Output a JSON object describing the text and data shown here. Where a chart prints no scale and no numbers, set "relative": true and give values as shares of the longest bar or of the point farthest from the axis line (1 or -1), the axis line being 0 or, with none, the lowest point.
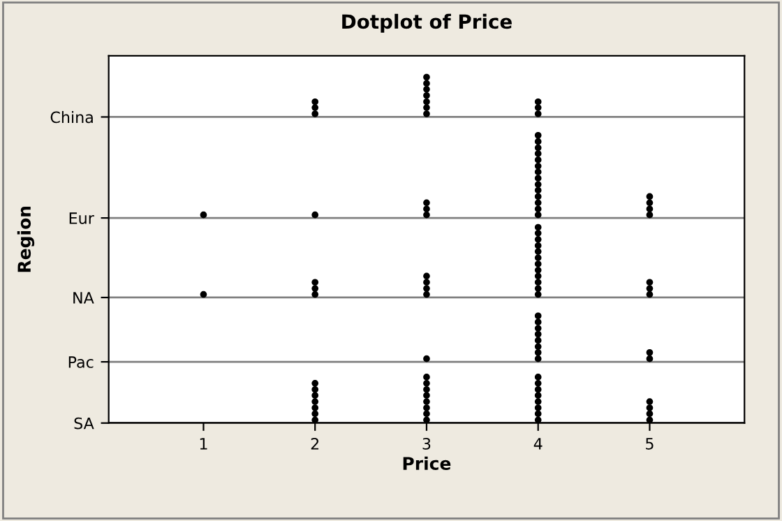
{
  "chart_data": {
    "type": "scatter",
    "title": "Dotplot of Price",
    "xlabel": "Price",
    "ylabel": "Region",
    "xlim": [
      0.15,
      5.85
    ],
    "xticks": [
      1,
      2,
      3,
      4,
      5
    ],
    "relative": true,
    "ref_lines": [
      {
        "axis": "y",
        "value": 0,
        "label": "SA",
        "color": "#000000"
      },
      {
        "axis": "y",
        "value": 0.177,
        "label": "Pac",
        "color": "#808080"
      },
      {
        "axis": "y",
        "value": 0.363,
        "label": "NA",
        "color": "#808080"
      },
      {
        "axis": "y",
        "value": 0.593,
        "label": "Eur",
        "color": "#808080"
      },
      {
        "axis": "y",
        "value": 0.885,
        "label": "China",
        "color": "#808080"
      }
    ],
    "marker": "circle",
    "series": [
      {
        "color": "#000000",
        "x": [
          2,
          2,
          2,
          3,
          3,
          3,
          3,
          3,
          3,
          3,
          4,
          4,
          4
        ],
        "values": [
          0.894,
          0.912,
          0.929,
          0.894,
          0.912,
          0.929,
          0.947,
          0.965,
          0.982,
          1,
          0.894,
          0.912,
          0.929
        ]
      },
      {
        "color": "#000000",
        "x": [
          1,
          2,
          3,
          3,
          3,
          4,
          4,
          4,
          4,
          4,
          4,
          4,
          4,
          4,
          4,
          4,
          4,
          4,
          4,
          5,
          5,
          5,
          5
        ],
        "values": [
          0.602,
          0.602,
          0.602,
          0.619,
          0.637,
          0.602,
          0.619,
          0.637,
          0.655,
          0.673,
          0.69,
          0.708,
          0.726,
          0.743,
          0.761,
          0.779,
          0.796,
          0.814,
          0.832,
          0.602,
          0.619,
          0.637,
          0.655
        ]
      },
      {
        "color": "#000000",
        "x": [
          1,
          2,
          2,
          2,
          3,
          3,
          3,
          3,
          4,
          4,
          4,
          4,
          4,
          4,
          4,
          4,
          4,
          4,
          4,
          4,
          5,
          5,
          5
        ],
        "values": [
          0.372,
          0.372,
          0.389,
          0.407,
          0.372,
          0.389,
          0.407,
          0.425,
          0.372,
          0.389,
          0.407,
          0.425,
          0.442,
          0.46,
          0.478,
          0.496,
          0.513,
          0.531,
          0.549,
          0.566,
          0.372,
          0.389,
          0.407
        ]
      },
      {
        "color": "#000000",
        "x": [
          3,
          4,
          4,
          4,
          4,
          4,
          4,
          4,
          4,
          5,
          5
        ],
        "values": [
          0.186,
          0.186,
          0.204,
          0.221,
          0.239,
          0.257,
          0.274,
          0.292,
          0.31,
          0.186,
          0.204
        ]
      },
      {
        "color": "#000000",
        "x": [
          2,
          2,
          2,
          2,
          2,
          2,
          2,
          3,
          3,
          3,
          3,
          3,
          3,
          3,
          3,
          4,
          4,
          4,
          4,
          4,
          4,
          4,
          4,
          5,
          5,
          5,
          5
        ],
        "values": [
          0.009,
          0.027,
          0.044,
          0.062,
          0.08,
          0.097,
          0.115,
          0.009,
          0.027,
          0.044,
          0.062,
          0.08,
          0.097,
          0.115,
          0.133,
          0.009,
          0.027,
          0.044,
          0.062,
          0.08,
          0.097,
          0.115,
          0.133,
          0.009,
          0.027,
          0.044,
          0.062
        ]
      }
    ]
  }
}
